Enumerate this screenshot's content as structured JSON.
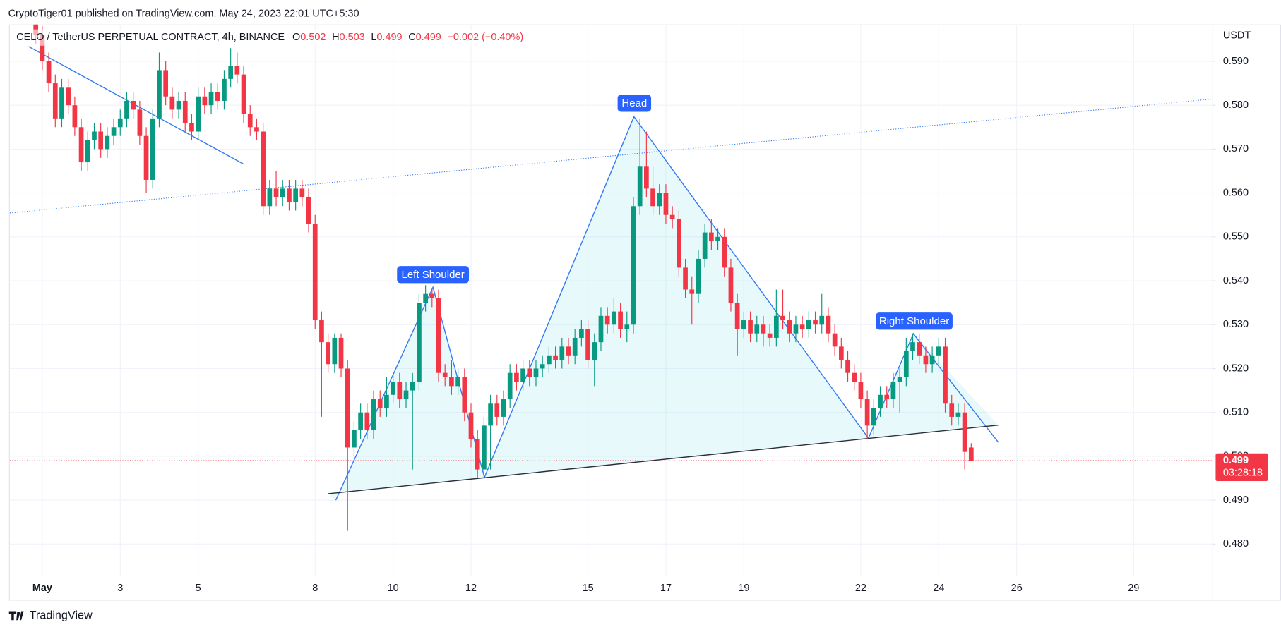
{
  "chart_data": {
    "type": "candlestick",
    "title": "CryptoTiger01 published on TradingView.com, May 24, 2023 22:01 UTC+5:30",
    "symbol": "CELO / TetherUS PERPETUAL CONTRACT, 4h, BINANCE",
    "ohlc_labels": [
      "O",
      "H",
      "L",
      "C"
    ],
    "change_label": "−0.002 (−0.40%)",
    "currency": "USDT",
    "countdown": "03:28:18",
    "annotations": [
      "Head",
      "Left Shoulder",
      "Right Shoulder"
    ],
    "watermark": "TradingView",
    "up_color": "#089981",
    "down_color": "#f23645",
    "grid": true,
    "xlim": [
      -20,
      720.5
    ],
    "xticks": [
      {
        "value": 0,
        "label": "May"
      },
      {
        "value": 48,
        "label": "3"
      },
      {
        "value": 96,
        "label": "5"
      },
      {
        "value": 168,
        "label": "8"
      },
      {
        "value": 216,
        "label": "10"
      },
      {
        "value": 264,
        "label": "12"
      },
      {
        "value": 336,
        "label": "15"
      },
      {
        "value": 384,
        "label": "17"
      },
      {
        "value": 432,
        "label": "19"
      },
      {
        "value": 504,
        "label": "22"
      },
      {
        "value": 552,
        "label": "24"
      },
      {
        "value": 600,
        "label": "26"
      },
      {
        "value": 672,
        "label": "29"
      }
    ],
    "ylim": [
      0.4727,
      0.5984
    ],
    "yticks": [
      {
        "value": 0.48,
        "label": "0.480"
      },
      {
        "value": 0.49,
        "label": "0.490"
      },
      {
        "value": 0.5,
        "label": "0.500"
      },
      {
        "value": 0.51,
        "label": "0.510"
      },
      {
        "value": 0.52,
        "label": "0.520"
      },
      {
        "value": 0.53,
        "label": "0.530"
      },
      {
        "value": 0.54,
        "label": "0.540"
      },
      {
        "value": 0.55,
        "label": "0.550"
      },
      {
        "value": 0.56,
        "label": "0.560"
      },
      {
        "value": 0.57,
        "label": "0.570"
      },
      {
        "value": 0.58,
        "label": "0.580"
      },
      {
        "value": 0.59,
        "label": "0.590"
      }
    ],
    "x": [
      -4,
      0,
      4,
      8,
      12,
      16,
      20,
      24,
      28,
      32,
      36,
      40,
      44,
      48,
      52,
      56,
      60,
      64,
      68,
      72,
      76,
      80,
      84,
      88,
      92,
      96,
      100,
      104,
      108,
      112,
      116,
      120,
      124,
      128,
      132,
      136,
      140,
      144,
      148,
      152,
      156,
      160,
      164,
      168,
      172,
      176,
      180,
      184,
      188,
      192,
      196,
      200,
      204,
      208,
      212,
      216,
      220,
      224,
      228,
      232,
      236,
      240,
      244,
      248,
      252,
      256,
      260,
      264,
      268,
      272,
      276,
      280,
      284,
      288,
      292,
      296,
      300,
      304,
      308,
      312,
      316,
      320,
      324,
      328,
      332,
      336,
      340,
      344,
      348,
      352,
      356,
      360,
      364,
      368,
      372,
      376,
      380,
      384,
      388,
      392,
      396,
      400,
      404,
      408,
      412,
      416,
      420,
      424,
      428,
      432,
      436,
      440,
      444,
      448,
      452,
      456,
      460,
      464,
      468,
      472,
      476,
      480,
      484,
      488,
      492,
      496,
      500,
      504,
      508,
      512,
      516,
      520,
      524,
      528,
      532,
      536,
      540,
      544,
      548,
      552,
      556,
      560,
      564,
      568,
      572
    ],
    "open": [
      0.6,
      0.596,
      0.59,
      0.585,
      0.577,
      0.584,
      0.58,
      0.575,
      0.567,
      0.572,
      0.574,
      0.57,
      0.573,
      0.575,
      0.577,
      0.581,
      0.579,
      0.573,
      0.563,
      0.577,
      0.588,
      0.582,
      0.579,
      0.581,
      0.576,
      0.574,
      0.582,
      0.58,
      0.583,
      0.581,
      0.586,
      0.589,
      0.587,
      0.578,
      0.575,
      0.574,
      0.557,
      0.561,
      0.559,
      0.561,
      0.558,
      0.561,
      0.559,
      0.553,
      0.531,
      0.526,
      0.521,
      0.527,
      0.52,
      0.502,
      0.506,
      0.51,
      0.506,
      0.513,
      0.511,
      0.514,
      0.517,
      0.513,
      0.515,
      0.517,
      0.535,
      0.537,
      0.536,
      0.519,
      0.518,
      0.516,
      0.518,
      0.51,
      0.504,
      0.497,
      0.507,
      0.512,
      0.509,
      0.513,
      0.519,
      0.517,
      0.52,
      0.518,
      0.52,
      0.521,
      0.523,
      0.522,
      0.525,
      0.523,
      0.527,
      0.529,
      0.522,
      0.526,
      0.532,
      0.53,
      0.533,
      0.529,
      0.53,
      0.557,
      0.566,
      0.561,
      0.557,
      0.56,
      0.555,
      0.554,
      0.543,
      0.538,
      0.537,
      0.545,
      0.551,
      0.549,
      0.55,
      0.543,
      0.535,
      0.529,
      0.531,
      0.528,
      0.53,
      0.528,
      0.527,
      0.532,
      0.531,
      0.528,
      0.53,
      0.529,
      0.531,
      0.53,
      0.532,
      0.528,
      0.525,
      0.522,
      0.519,
      0.517,
      0.513,
      0.507,
      0.511,
      0.514,
      0.513,
      0.517,
      0.518,
      0.524,
      0.526,
      0.523,
      0.521,
      0.523,
      0.525,
      0.512,
      0.509,
      0.51,
      0.502
    ],
    "high": [
      0.602,
      0.598,
      0.592,
      0.587,
      0.586,
      0.586,
      0.582,
      0.577,
      0.574,
      0.576,
      0.576,
      0.575,
      0.577,
      0.579,
      0.583,
      0.583,
      0.581,
      0.575,
      0.579,
      0.592,
      0.59,
      0.584,
      0.583,
      0.583,
      0.578,
      0.584,
      0.584,
      0.585,
      0.585,
      0.588,
      0.593,
      0.592,
      0.589,
      0.58,
      0.577,
      0.576,
      0.563,
      0.565,
      0.563,
      0.563,
      0.563,
      0.563,
      0.561,
      0.555,
      0.533,
      0.528,
      0.528,
      0.528,
      0.522,
      0.508,
      0.512,
      0.512,
      0.515,
      0.515,
      0.518,
      0.519,
      0.519,
      0.517,
      0.519,
      0.537,
      0.539,
      0.538,
      0.538,
      0.521,
      0.522,
      0.52,
      0.52,
      0.512,
      0.506,
      0.509,
      0.514,
      0.514,
      0.515,
      0.521,
      0.521,
      0.522,
      0.522,
      0.522,
      0.523,
      0.525,
      0.525,
      0.527,
      0.527,
      0.529,
      0.531,
      0.531,
      0.528,
      0.534,
      0.534,
      0.536,
      0.535,
      0.533,
      0.559,
      0.577,
      0.574,
      0.566,
      0.562,
      0.562,
      0.557,
      0.556,
      0.545,
      0.541,
      0.547,
      0.553,
      0.554,
      0.552,
      0.552,
      0.545,
      0.537,
      0.533,
      0.533,
      0.532,
      0.532,
      0.53,
      0.538,
      0.538,
      0.533,
      0.532,
      0.532,
      0.533,
      0.533,
      0.537,
      0.534,
      0.53,
      0.527,
      0.524,
      0.521,
      0.519,
      0.515,
      0.513,
      0.516,
      0.516,
      0.519,
      0.52,
      0.527,
      0.528,
      0.528,
      0.525,
      0.525,
      0.527,
      0.527,
      0.514,
      0.512,
      0.512,
      0.503
    ],
    "low": [
      0.594,
      0.588,
      0.583,
      0.575,
      0.575,
      0.578,
      0.573,
      0.565,
      0.565,
      0.57,
      0.568,
      0.568,
      0.571,
      0.573,
      0.575,
      0.577,
      0.571,
      0.56,
      0.561,
      0.575,
      0.58,
      0.577,
      0.577,
      0.574,
      0.572,
      0.572,
      0.578,
      0.578,
      0.579,
      0.579,
      0.584,
      0.585,
      0.576,
      0.573,
      0.572,
      0.555,
      0.555,
      0.557,
      0.557,
      0.556,
      0.556,
      0.557,
      0.551,
      0.529,
      0.509,
      0.519,
      0.519,
      0.518,
      0.483,
      0.5,
      0.504,
      0.504,
      0.504,
      0.509,
      0.509,
      0.512,
      0.511,
      0.511,
      0.497,
      0.515,
      0.533,
      0.534,
      0.517,
      0.516,
      0.514,
      0.514,
      0.508,
      0.502,
      0.495,
      0.495,
      0.497,
      0.507,
      0.507,
      0.511,
      0.515,
      0.515,
      0.516,
      0.516,
      0.518,
      0.519,
      0.52,
      0.52,
      0.521,
      0.521,
      0.525,
      0.52,
      0.516,
      0.524,
      0.528,
      0.528,
      0.527,
      0.526,
      0.528,
      0.555,
      0.559,
      0.555,
      0.555,
      0.553,
      0.552,
      0.541,
      0.536,
      0.53,
      0.535,
      0.543,
      0.547,
      0.547,
      0.541,
      0.533,
      0.523,
      0.527,
      0.526,
      0.526,
      0.525,
      0.525,
      0.525,
      0.529,
      0.526,
      0.526,
      0.527,
      0.527,
      0.528,
      0.528,
      0.526,
      0.523,
      0.52,
      0.517,
      0.515,
      0.511,
      0.504,
      0.505,
      0.509,
      0.511,
      0.511,
      0.51,
      0.516,
      0.522,
      0.521,
      0.519,
      0.519,
      0.521,
      0.51,
      0.507,
      0.507,
      0.497,
      0.499
    ],
    "close": [
      0.596,
      0.59,
      0.585,
      0.577,
      0.584,
      0.58,
      0.575,
      0.567,
      0.572,
      0.574,
      0.57,
      0.573,
      0.575,
      0.577,
      0.581,
      0.579,
      0.573,
      0.563,
      0.577,
      0.588,
      0.582,
      0.579,
      0.581,
      0.576,
      0.574,
      0.582,
      0.58,
      0.583,
      0.581,
      0.586,
      0.589,
      0.587,
      0.578,
      0.575,
      0.574,
      0.557,
      0.561,
      0.559,
      0.561,
      0.558,
      0.561,
      0.559,
      0.553,
      0.531,
      0.526,
      0.521,
      0.527,
      0.52,
      0.502,
      0.506,
      0.51,
      0.506,
      0.513,
      0.511,
      0.514,
      0.517,
      0.513,
      0.515,
      0.517,
      0.535,
      0.537,
      0.536,
      0.519,
      0.518,
      0.516,
      0.518,
      0.51,
      0.504,
      0.497,
      0.507,
      0.512,
      0.509,
      0.513,
      0.519,
      0.517,
      0.52,
      0.518,
      0.52,
      0.521,
      0.523,
      0.522,
      0.525,
      0.523,
      0.527,
      0.529,
      0.522,
      0.526,
      0.532,
      0.53,
      0.533,
      0.529,
      0.53,
      0.557,
      0.566,
      0.561,
      0.557,
      0.56,
      0.555,
      0.554,
      0.543,
      0.538,
      0.537,
      0.545,
      0.551,
      0.549,
      0.55,
      0.543,
      0.535,
      0.529,
      0.531,
      0.528,
      0.53,
      0.528,
      0.527,
      0.532,
      0.531,
      0.528,
      0.53,
      0.529,
      0.531,
      0.53,
      0.532,
      0.528,
      0.525,
      0.522,
      0.519,
      0.517,
      0.513,
      0.507,
      0.511,
      0.514,
      0.513,
      0.517,
      0.518,
      0.524,
      0.526,
      0.523,
      0.521,
      0.523,
      0.525,
      0.512,
      0.509,
      0.51,
      0.501,
      0.499
    ]
  }
}
